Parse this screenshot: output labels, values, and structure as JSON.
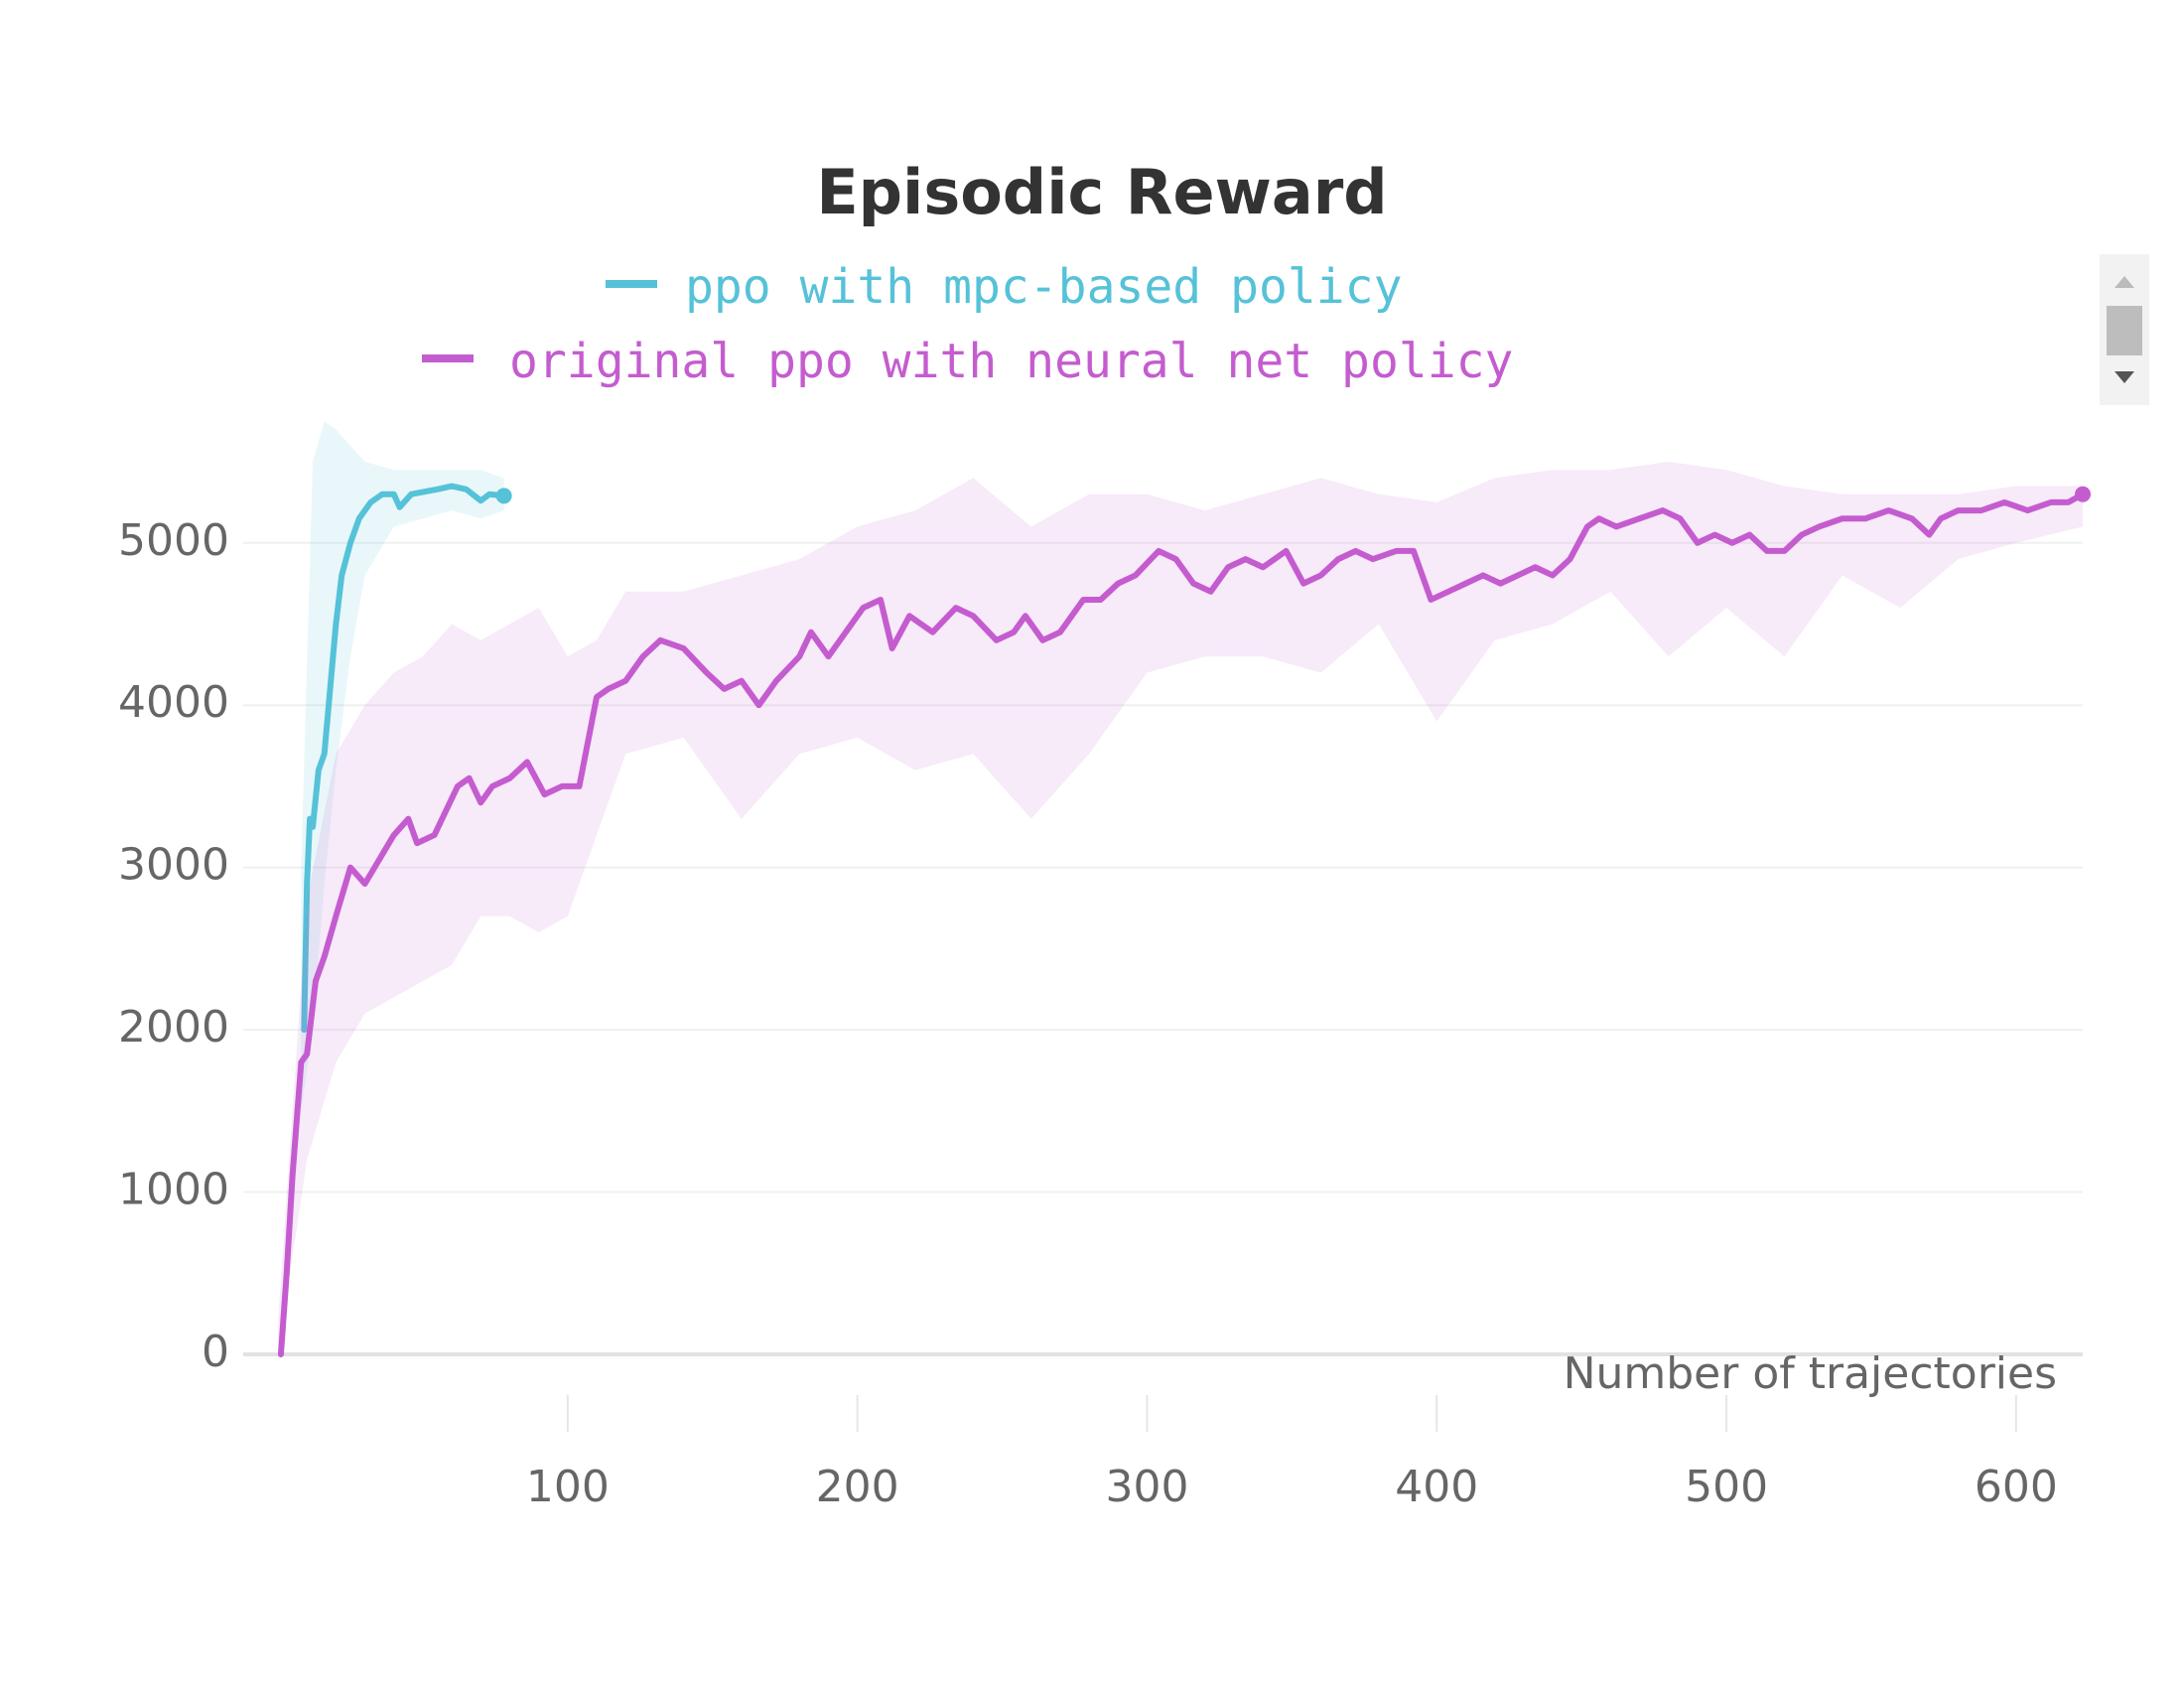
{
  "chart_data": {
    "type": "line",
    "title": "Episodic Reward",
    "x_label": "Number of trajectories",
    "xlim": [
      -12,
      623
    ],
    "ylim": [
      0,
      5800
    ],
    "xticks": [
      100,
      200,
      300,
      400,
      500,
      600
    ],
    "yticks": [
      0,
      1000,
      2000,
      3000,
      4000,
      5000
    ],
    "grid": true,
    "series": [
      {
        "name": "ppo with mpc-based policy",
        "color": "#55c2d8",
        "x": [
          9,
          10,
          11,
          12,
          14,
          16,
          18,
          20,
          22,
          25,
          28,
          32,
          36,
          40,
          42,
          46,
          55,
          60,
          65,
          70,
          73,
          78
        ],
        "values": [
          2000,
          2900,
          3300,
          3250,
          3600,
          3700,
          4100,
          4500,
          4800,
          5000,
          5150,
          5250,
          5300,
          5300,
          5220,
          5300,
          5330,
          5350,
          5330,
          5260,
          5300,
          5290
        ],
        "band": {
          "x": [
            8,
            12,
            16,
            20,
            25,
            30,
            40,
            50,
            60,
            70,
            78
          ],
          "lower": [
            1500,
            2000,
            2900,
            3600,
            4300,
            4800,
            5100,
            5150,
            5200,
            5150,
            5200
          ],
          "upper": [
            3000,
            5500,
            5750,
            5700,
            5600,
            5500,
            5450,
            5450,
            5450,
            5450,
            5400
          ]
        }
      },
      {
        "name": "original ppo with neural net policy",
        "color": "#c45ccf",
        "x": [
          1,
          3,
          5,
          8,
          10,
          13,
          16,
          20,
          25,
          30,
          35,
          40,
          45,
          48,
          54,
          58,
          62,
          66,
          70,
          74,
          80,
          86,
          92,
          98,
          104,
          110,
          114,
          120,
          126,
          132,
          140,
          148,
          154,
          160,
          166,
          172,
          180,
          184,
          190,
          196,
          202,
          208,
          212,
          218,
          226,
          234,
          240,
          248,
          254,
          258,
          264,
          270,
          278,
          284,
          290,
          296,
          304,
          310,
          316,
          322,
          328,
          334,
          340,
          348,
          354,
          360,
          366,
          372,
          378,
          386,
          392,
          398,
          404,
          410,
          416,
          422,
          428,
          434,
          440,
          446,
          452,
          456,
          462,
          470,
          478,
          484,
          490,
          496,
          502,
          508,
          514,
          520,
          526,
          532,
          540,
          548,
          556,
          564,
          570,
          574,
          580,
          588,
          596,
          604,
          612,
          618,
          623
        ],
        "values": [
          0,
          500,
          1100,
          1800,
          1850,
          2300,
          2450,
          2700,
          3000,
          2900,
          3050,
          3200,
          3300,
          3150,
          3200,
          3350,
          3500,
          3550,
          3400,
          3500,
          3550,
          3650,
          3450,
          3500,
          3500,
          4050,
          4100,
          4150,
          4300,
          4400,
          4350,
          4200,
          4100,
          4150,
          4000,
          4150,
          4300,
          4450,
          4300,
          4450,
          4600,
          4650,
          4350,
          4550,
          4450,
          4600,
          4550,
          4400,
          4450,
          4550,
          4400,
          4450,
          4650,
          4650,
          4750,
          4800,
          4950,
          4900,
          4750,
          4700,
          4850,
          4900,
          4850,
          4950,
          4750,
          4800,
          4900,
          4950,
          4900,
          4950,
          4950,
          4650,
          4700,
          4750,
          4800,
          4750,
          4800,
          4850,
          4800,
          4900,
          5100,
          5150,
          5100,
          5150,
          5200,
          5150,
          5000,
          5050,
          5000,
          5050,
          4950,
          4950,
          5050,
          5100,
          5150,
          5150,
          5200,
          5150,
          5050,
          5150,
          5200,
          5200,
          5250,
          5200,
          5250,
          5250,
          5300
        ],
        "band": {
          "x": [
            0,
            10,
            20,
            30,
            40,
            50,
            60,
            70,
            80,
            90,
            100,
            110,
            120,
            140,
            160,
            180,
            200,
            220,
            240,
            260,
            280,
            300,
            320,
            340,
            360,
            380,
            400,
            420,
            440,
            460,
            480,
            500,
            520,
            540,
            560,
            580,
            600,
            623
          ],
          "lower": [
            0,
            1200,
            1800,
            2100,
            2200,
            2300,
            2400,
            2700,
            2700,
            2600,
            2700,
            3200,
            3700,
            3800,
            3300,
            3700,
            3800,
            3600,
            3700,
            3300,
            3700,
            4200,
            4300,
            4300,
            4200,
            4500,
            3900,
            4400,
            4500,
            4700,
            4300,
            4600,
            4300,
            4800,
            4600,
            4900,
            5000,
            5100
          ],
          "upper": [
            200,
            2800,
            3700,
            4000,
            4200,
            4300,
            4500,
            4400,
            4500,
            4600,
            4300,
            4400,
            4700,
            4700,
            4800,
            4900,
            5100,
            5200,
            5400,
            5100,
            5300,
            5300,
            5200,
            5300,
            5400,
            5300,
            5250,
            5400,
            5450,
            5450,
            5500,
            5450,
            5350,
            5300,
            5300,
            5300,
            5350,
            5350
          ]
        }
      }
    ]
  }
}
